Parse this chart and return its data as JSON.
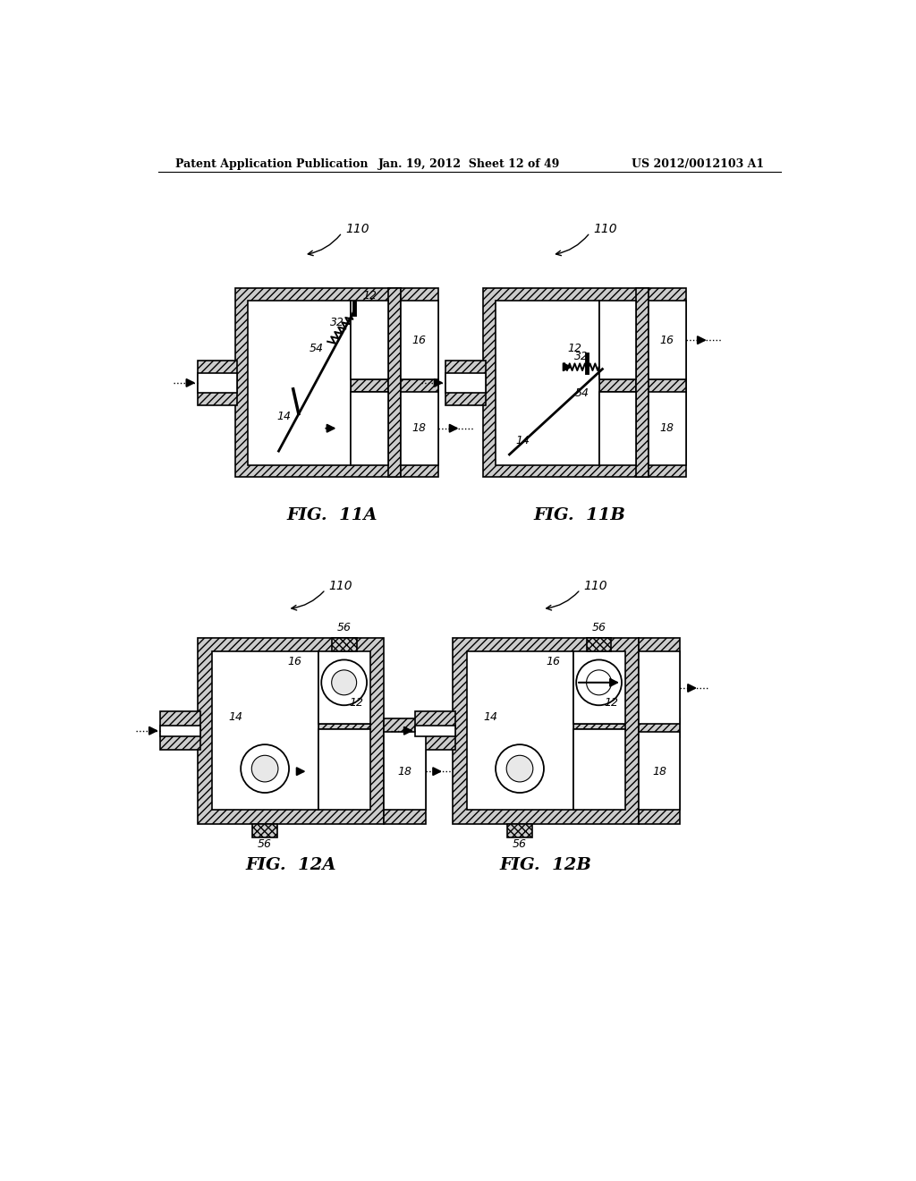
{
  "bg_color": "#ffffff",
  "header_left": "Patent Application Publication",
  "header_mid": "Jan. 19, 2012  Sheet 12 of 49",
  "header_right": "US 2012/0012103 A1",
  "fig11A_label": "FIG.  11A",
  "fig11B_label": "FIG.  11B",
  "fig12A_label": "FIG.  12A",
  "fig12B_label": "FIG.  12B",
  "ref_110": "110",
  "ref_12": "12",
  "ref_14": "14",
  "ref_16": "16",
  "ref_18": "18",
  "ref_32": "32",
  "ref_54": "54",
  "ref_56": "56"
}
